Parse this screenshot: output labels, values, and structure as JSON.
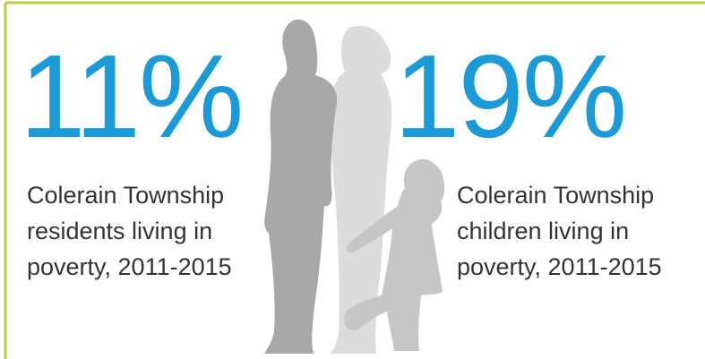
{
  "stats": [
    {
      "value": "11%",
      "lines": [
        "Colerain Township",
        "residents living in",
        "poverty, 2011-2015"
      ]
    },
    {
      "value": "19%",
      "lines": [
        "Colerain Township",
        "children living in",
        "poverty, 2011-2015"
      ]
    }
  ]
}
